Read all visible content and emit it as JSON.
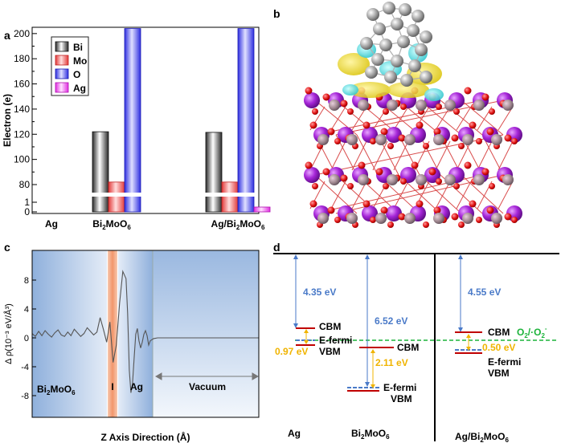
{
  "panel_labels": [
    "a",
    "b",
    "c",
    "d"
  ],
  "chart_data": [
    {
      "panel": "a",
      "type": "bar",
      "ylabel": "Electron (e)",
      "categories": [
        "Ag",
        "Bi2MoO6",
        "Ag/Bi2MoO6"
      ],
      "category_labels": [
        {
          "base": "Ag",
          "sub": ""
        },
        {
          "base": "Bi",
          "sub": "2",
          "mid": "MoO",
          "sub2": "6"
        },
        {
          "base": "Ag/Bi",
          "sub": "2",
          "mid": "MoO",
          "sub2": "6"
        }
      ],
      "series": [
        {
          "name": "Bi",
          "color": "#6e6e6e",
          "values": [
            null,
            122,
            121.5
          ]
        },
        {
          "name": "Mo",
          "color": "#ff6a6a",
          "values": [
            null,
            82,
            82
          ]
        },
        {
          "name": "O",
          "color": "#5a5aff",
          "values": [
            null,
            204,
            204
          ]
        },
        {
          "name": "Ag",
          "color": "#ff5aff",
          "values": [
            null,
            null,
            0.5
          ]
        }
      ],
      "yticks": [
        0,
        1,
        80,
        100,
        120,
        140,
        160,
        180,
        200
      ],
      "ylim": [
        0,
        205
      ],
      "axis_break": "between 1 and 80",
      "legend": "top-left"
    },
    {
      "panel": "c",
      "type": "line",
      "xlabel": "Z Axis Direction (Å)",
      "ylabel": "Δ ρ(10⁻³ eV/Å³)",
      "yticks": [
        8,
        4,
        0,
        -4,
        -8
      ],
      "ylim": [
        -10,
        10
      ],
      "x": [
        0,
        4,
        8,
        12,
        16,
        20,
        24,
        28,
        32,
        36,
        40,
        44,
        48,
        52,
        56,
        60,
        64,
        68,
        72,
        76,
        80,
        84,
        88,
        92,
        96,
        100,
        104,
        108,
        112,
        116,
        118,
        120,
        122,
        124,
        126,
        128,
        130,
        132,
        134,
        136,
        138,
        140,
        142,
        144,
        146,
        150,
        155,
        160,
        165,
        170,
        180,
        190,
        200,
        220,
        240,
        260,
        280
      ],
      "y": [
        0.6,
        0.2,
        0.9,
        0.3,
        1.0,
        0.5,
        0.1,
        0.7,
        1.1,
        0.4,
        0.2,
        0.8,
        0.3,
        1.2,
        0.7,
        0.2,
        0.6,
        1.4,
        0.9,
        0.4,
        0.8,
        2.8,
        1.2,
        -0.6,
        2.2,
        -3.4,
        -1.0,
        4.8,
        9.2,
        8.2,
        3.4,
        -4.5,
        -7.6,
        -6.3,
        -2.8,
        0.5,
        1.3,
        -0.4,
        -1.4,
        -0.6,
        0.5,
        1.0,
        0.3,
        -1.0,
        -0.4,
        -0.1,
        0.0,
        0.0,
        0.0,
        0.0,
        0.0,
        0.0,
        0.0,
        0.0,
        0.0,
        0.0,
        0.0
      ],
      "regions": [
        {
          "label": "Bi2MoO6"
        },
        {
          "label": "I"
        },
        {
          "label": "Ag"
        },
        {
          "label": "Vacuum"
        }
      ],
      "line_color": "#555555"
    },
    {
      "panel": "d",
      "type": "diagram",
      "columns": [
        {
          "name": "Ag",
          "gap_label": "4.35 eV",
          "offset_label": "0.97 eV",
          "level_labels": [
            "CBM",
            "E-fermi",
            "VBM"
          ]
        },
        {
          "name": "Bi2MoO6",
          "gap_label": "6.52 eV",
          "offset_label": "2.11 eV",
          "level_labels": [
            "CBM",
            "E-fermi",
            "VBM"
          ]
        },
        {
          "name": "Ag/Bi2MoO6",
          "gap_label": "4.55 eV",
          "offset_label": "0.50 eV",
          "level_labels": [
            "CBM",
            "E-fermi",
            "VBM"
          ]
        }
      ],
      "redox_label": "O2/·O2⁻",
      "colors": {
        "gap": "#4a7ac8",
        "offset": "#f0b400",
        "band": "#c00000",
        "fermi": "#4a7ac8",
        "redox": "#1bb33a"
      }
    }
  ],
  "panel_b": {
    "description_free": true
  }
}
